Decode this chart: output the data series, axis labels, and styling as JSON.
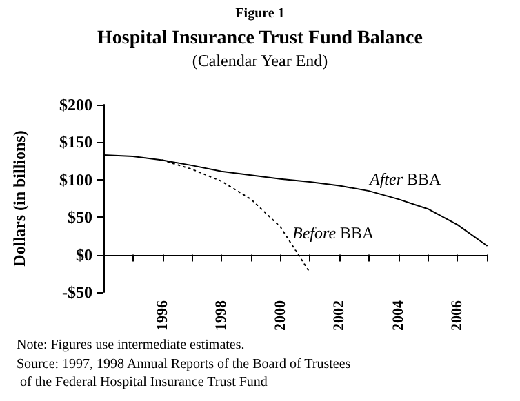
{
  "chart_data": {
    "type": "line",
    "title": "Hospital Insurance Trust Fund Balance",
    "subtitle": "(Calendar Year End)",
    "ylabel": "Dollars (in billions)",
    "annotations": [
      "Figure 1",
      "Note: Figures use intermediate estimates.",
      "Source: 1997, 1998 Annual Reports of the Board of Trustees of the Federal Hospital Insurance Trust Fund"
    ],
    "series": [
      {
        "name": "After BBA",
        "color": "#000000",
        "line_style": "solid",
        "x": [
          1994,
          1995,
          1996,
          1997,
          1998,
          1999,
          2000,
          2001,
          2002,
          2003,
          2004,
          2005,
          2006,
          2007
        ],
        "values": [
          133,
          131,
          126,
          119,
          111,
          106,
          101,
          97,
          92,
          85,
          74,
          61,
          40,
          12
        ]
      },
      {
        "name": "Before BBA",
        "color": "#000000",
        "line_style": "dotted",
        "x": [
          1996,
          1997,
          1998,
          1999,
          2000,
          2001
        ],
        "values": [
          126,
          114,
          98,
          74,
          37,
          -24
        ]
      }
    ],
    "xlim": [
      1994,
      2007
    ],
    "xticks": [
      {
        "value": 1995,
        "label": null
      },
      {
        "value": 1996,
        "label": "1996"
      },
      {
        "value": 1997,
        "label": null
      },
      {
        "value": 1998,
        "label": "1998"
      },
      {
        "value": 1999,
        "label": null
      },
      {
        "value": 2000,
        "label": "2000"
      },
      {
        "value": 2001,
        "label": null
      },
      {
        "value": 2002,
        "label": "2002"
      },
      {
        "value": 2003,
        "label": null
      },
      {
        "value": 2004,
        "label": "2004"
      },
      {
        "value": 2005,
        "label": null
      },
      {
        "value": 2006,
        "label": "2006"
      },
      {
        "value": 2007,
        "label": null
      }
    ],
    "ylim": [
      -50,
      200
    ],
    "yticks": [
      {
        "value": -50,
        "label": "-$50"
      },
      {
        "value": 0,
        "label": "$0"
      },
      {
        "value": 50,
        "label": "$50"
      },
      {
        "value": 100,
        "label": "$100"
      },
      {
        "value": 150,
        "label": "$150"
      },
      {
        "value": 200,
        "label": "$200"
      }
    ],
    "legend": false,
    "marker": "none"
  }
}
